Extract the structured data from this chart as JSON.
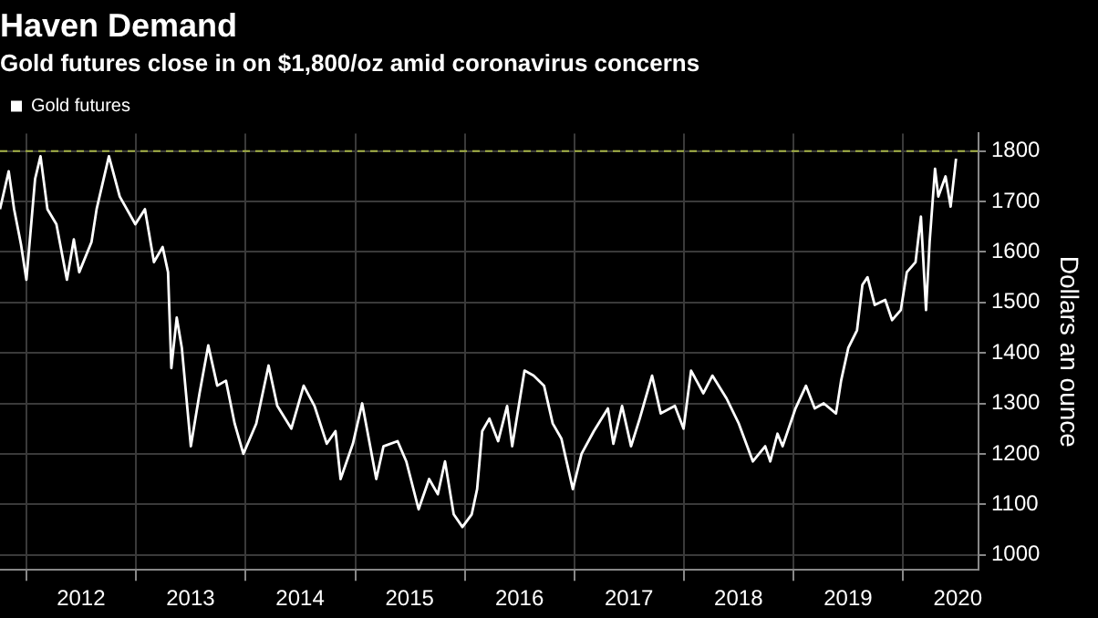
{
  "chart_data": {
    "type": "line",
    "title": "Haven Demand",
    "subtitle": "Gold futures close in on $1,800/oz amid coronavirus concerns",
    "ylabel": "Dollars an ounce",
    "legend": "top left",
    "grid": true,
    "xlim": [
      "2011-10-05",
      "2020-09-08"
    ],
    "xticks": [
      {
        "value": "2012-01-01",
        "label": null
      },
      {
        "value": "2012-07-01",
        "label": "2012"
      },
      {
        "value": "2013-01-01",
        "label": null
      },
      {
        "value": "2013-07-01",
        "label": "2013"
      },
      {
        "value": "2014-01-01",
        "label": null
      },
      {
        "value": "2014-07-01",
        "label": "2014"
      },
      {
        "value": "2015-01-01",
        "label": null
      },
      {
        "value": "2015-07-01",
        "label": "2015"
      },
      {
        "value": "2016-01-01",
        "label": null
      },
      {
        "value": "2016-07-01",
        "label": "2016"
      },
      {
        "value": "2017-01-01",
        "label": null
      },
      {
        "value": "2017-07-01",
        "label": "2017"
      },
      {
        "value": "2018-01-01",
        "label": null
      },
      {
        "value": "2018-07-01",
        "label": "2018"
      },
      {
        "value": "2019-01-01",
        "label": null
      },
      {
        "value": "2019-07-01",
        "label": "2019"
      },
      {
        "value": "2020-01-01",
        "label": null
      },
      {
        "value": "2020-07-01",
        "label": "2020"
      }
    ],
    "ylim": [
      970,
      1835
    ],
    "yticks": [
      1000,
      1100,
      1200,
      1300,
      1400,
      1500,
      1600,
      1700,
      1800
    ],
    "ref_lines": [
      {
        "axis": "y",
        "value": 1800,
        "label": null,
        "color": "#a3b044",
        "line_style": "dashed"
      }
    ],
    "x": [
      "2011-10-05",
      "2011-11-03",
      "2011-11-21",
      "2011-12-14",
      "2012-01-01",
      "2012-01-30",
      "2012-02-17",
      "2012-03-11",
      "2012-04-10",
      "2012-05-15",
      "2012-06-07",
      "2012-06-25",
      "2012-08-05",
      "2012-08-22",
      "2012-10-02",
      "2012-11-07",
      "2012-12-29",
      "2013-01-30",
      "2013-03-01",
      "2013-03-30",
      "2013-04-17",
      "2013-04-28",
      "2013-05-16",
      "2013-06-02",
      "2013-07-02",
      "2013-07-31",
      "2013-08-29",
      "2013-09-28",
      "2013-10-27",
      "2013-11-25",
      "2013-12-24",
      "2014-02-05",
      "2014-03-18",
      "2014-04-16",
      "2014-06-02",
      "2014-07-13",
      "2014-08-18",
      "2014-09-28",
      "2014-10-27",
      "2014-11-13",
      "2014-12-24",
      "2015-01-24",
      "2015-03-12",
      "2015-04-05",
      "2015-05-22",
      "2015-06-20",
      "2015-07-31",
      "2015-09-04",
      "2015-10-03",
      "2015-10-27",
      "2015-11-25",
      "2015-12-24",
      "2016-01-24",
      "2016-02-11",
      "2016-02-28",
      "2016-03-23",
      "2016-04-21",
      "2016-05-21",
      "2016-06-07",
      "2016-07-18",
      "2016-08-17",
      "2016-09-21",
      "2016-10-20",
      "2016-11-18",
      "2016-12-26",
      "2017-01-24",
      "2017-03-06",
      "2017-04-22",
      "2017-05-10",
      "2017-06-08",
      "2017-07-08",
      "2017-08-06",
      "2017-09-16",
      "2017-10-15",
      "2017-12-01",
      "2017-12-30",
      "2018-01-24",
      "2018-03-06",
      "2018-04-05",
      "2018-05-22",
      "2018-07-02",
      "2018-08-18",
      "2018-09-28",
      "2018-10-15",
      "2018-11-08",
      "2018-11-25",
      "2019-01-07",
      "2019-02-11",
      "2019-03-12",
      "2019-04-11",
      "2019-05-22",
      "2019-06-08",
      "2019-07-02",
      "2019-07-31",
      "2019-08-18",
      "2019-09-04",
      "2019-09-28",
      "2019-11-02",
      "2019-11-25",
      "2019-12-24",
      "2020-01-13",
      "2020-02-11",
      "2020-02-29",
      "2020-03-17",
      "2020-03-29",
      "2020-04-16",
      "2020-04-27",
      "2020-05-21",
      "2020-06-07",
      "2020-06-25"
    ],
    "series": [
      {
        "name": "Gold futures",
        "color": "#ffffff",
        "values": [
          1685,
          1760,
          1685,
          1615,
          1545,
          1745,
          1790,
          1685,
          1655,
          1545,
          1625,
          1560,
          1620,
          1685,
          1790,
          1710,
          1655,
          1685,
          1580,
          1610,
          1560,
          1370,
          1470,
          1410,
          1215,
          1320,
          1415,
          1335,
          1345,
          1260,
          1200,
          1260,
          1375,
          1295,
          1250,
          1335,
          1295,
          1220,
          1245,
          1150,
          1220,
          1300,
          1150,
          1215,
          1225,
          1185,
          1090,
          1150,
          1120,
          1185,
          1080,
          1055,
          1080,
          1130,
          1245,
          1270,
          1225,
          1295,
          1215,
          1365,
          1355,
          1335,
          1260,
          1230,
          1130,
          1200,
          1245,
          1290,
          1220,
          1295,
          1215,
          1270,
          1355,
          1280,
          1295,
          1250,
          1365,
          1320,
          1355,
          1310,
          1260,
          1185,
          1215,
          1185,
          1240,
          1215,
          1290,
          1335,
          1290,
          1300,
          1280,
          1345,
          1410,
          1445,
          1535,
          1550,
          1495,
          1505,
          1465,
          1485,
          1560,
          1580,
          1670,
          1485,
          1620,
          1765,
          1710,
          1750,
          1690,
          1785
        ]
      }
    ]
  }
}
